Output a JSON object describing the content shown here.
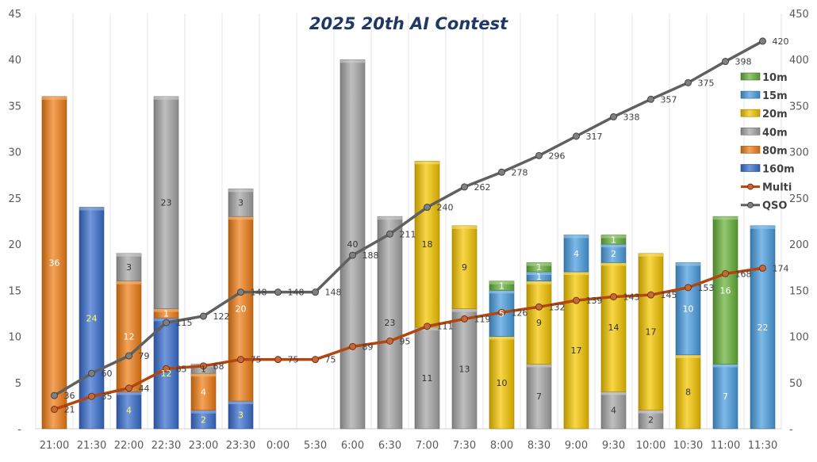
{
  "chart_data": {
    "type": "bar",
    "title": "2025 20th AI Contest",
    "categories": [
      "21:00",
      "21:30",
      "22:00",
      "22:30",
      "23:00",
      "23:30",
      "0:00",
      "5:30",
      "6:00",
      "6:30",
      "7:00",
      "7:30",
      "8:00",
      "8:30",
      "9:00",
      "9:30",
      "10:00",
      "10:30",
      "11:00",
      "11:30"
    ],
    "stack_order": [
      "160m",
      "80m",
      "40m",
      "20m",
      "15m",
      "10m"
    ],
    "series": [
      {
        "name": "160m",
        "kind": "bar",
        "color": "#3a6fcf",
        "values": [
          0,
          24,
          4,
          12,
          2,
          3,
          0,
          0,
          0,
          0,
          0,
          0,
          0,
          0,
          0,
          0,
          0,
          0,
          0,
          0
        ]
      },
      {
        "name": "80m",
        "kind": "bar",
        "color": "#f07f17",
        "values": [
          36,
          0,
          12,
          1,
          4,
          20,
          0,
          0,
          0,
          0,
          0,
          0,
          0,
          0,
          0,
          0,
          0,
          0,
          0,
          0
        ]
      },
      {
        "name": "40m",
        "kind": "bar",
        "color": "#a6a6a6",
        "values": [
          0,
          0,
          3,
          23,
          1,
          3,
          0,
          0,
          40,
          23,
          11,
          13,
          0,
          7,
          0,
          4,
          2,
          0,
          0,
          0
        ]
      },
      {
        "name": "20m",
        "kind": "bar",
        "color": "#f5c600",
        "values": [
          0,
          0,
          0,
          0,
          0,
          0,
          0,
          0,
          0,
          0,
          18,
          9,
          10,
          9,
          17,
          14,
          17,
          8,
          0,
          0
        ]
      },
      {
        "name": "15m",
        "kind": "bar",
        "color": "#4a9ee0",
        "values": [
          0,
          0,
          0,
          0,
          0,
          0,
          0,
          0,
          0,
          0,
          0,
          0,
          5,
          1,
          4,
          2,
          0,
          10,
          7,
          22
        ]
      },
      {
        "name": "10m",
        "kind": "bar",
        "color": "#67b23a",
        "values": [
          0,
          0,
          0,
          0,
          0,
          0,
          0,
          0,
          0,
          0,
          0,
          0,
          1,
          1,
          0,
          1,
          0,
          0,
          16,
          0
        ]
      },
      {
        "name": "Multi",
        "kind": "line",
        "axis": "right",
        "color": "#b4450c",
        "values": [
          21,
          35,
          44,
          65,
          68,
          75,
          75,
          75,
          89,
          95,
          111,
          119,
          126,
          132,
          139,
          143,
          145,
          153,
          168,
          174
        ]
      },
      {
        "name": "QSO",
        "kind": "line",
        "axis": "right",
        "color": "#606060",
        "values": [
          36,
          60,
          79,
          115,
          122,
          148,
          148,
          148,
          188,
          211,
          240,
          262,
          278,
          296,
          317,
          338,
          357,
          375,
          398,
          420
        ]
      }
    ],
    "y_left": {
      "min": 0,
      "max": 45,
      "step": 5,
      "ticks": [
        "-",
        "5",
        "10",
        "15",
        "20",
        "25",
        "30",
        "35",
        "40",
        "45"
      ]
    },
    "y_right": {
      "min": 0,
      "max": 450,
      "step": 50,
      "ticks": [
        "-",
        "50",
        "100",
        "150",
        "200",
        "250",
        "300",
        "350",
        "400",
        "450"
      ]
    },
    "legend": {
      "position": "right",
      "order": [
        "10m",
        "15m",
        "20m",
        "40m",
        "80m",
        "160m",
        "Multi",
        "QSO"
      ]
    },
    "grid": true
  }
}
